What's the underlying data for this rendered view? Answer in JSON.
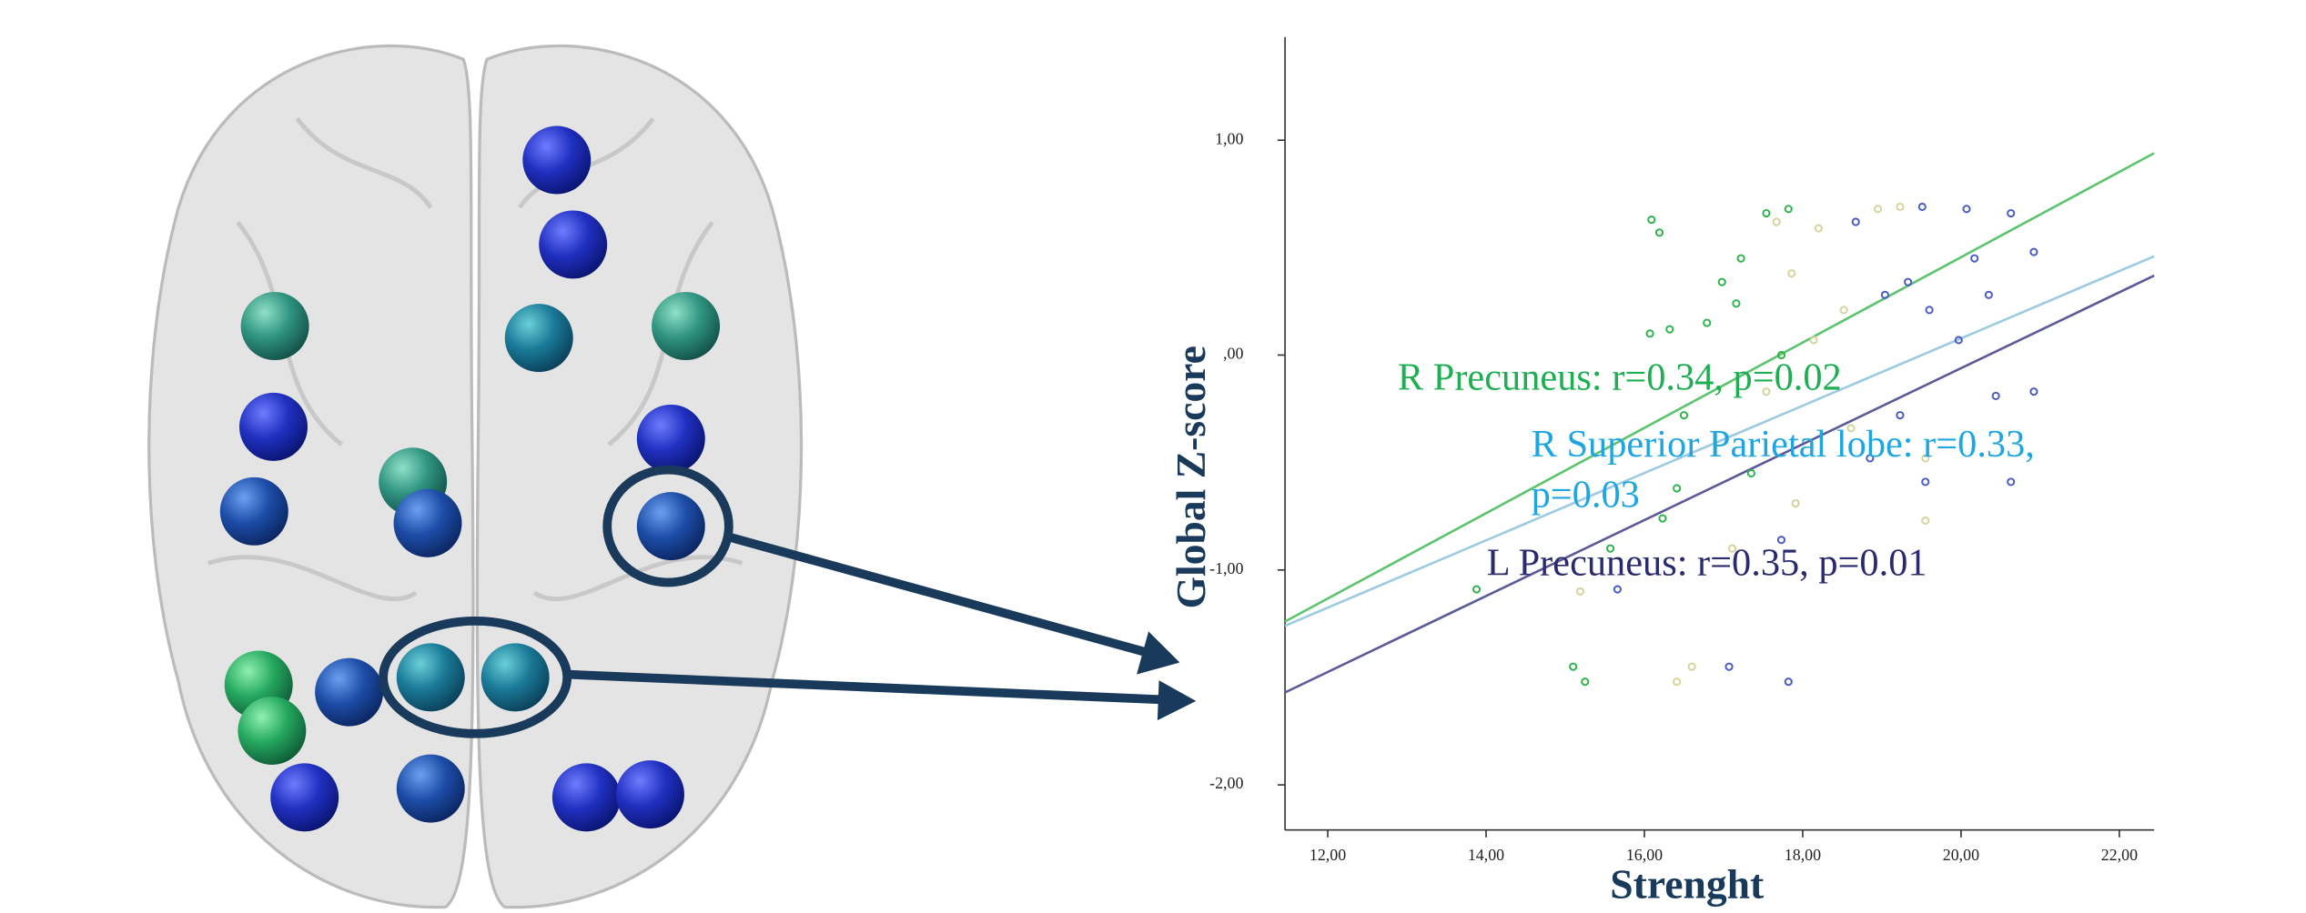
{
  "chart_data": {
    "type": "scatter",
    "xlabel": "Strenght",
    "ylabel": "Global Z-score",
    "xlim": [
      11.46,
      22.44
    ],
    "ylim": [
      -2.21,
      1.48
    ],
    "xticks": [
      {
        "value": 12,
        "label": "12,00"
      },
      {
        "value": 14,
        "label": "14,00"
      },
      {
        "value": 16,
        "label": "16,00"
      },
      {
        "value": 18,
        "label": "18,00"
      },
      {
        "value": 20,
        "label": "20,00"
      },
      {
        "value": 22,
        "label": "22,00"
      }
    ],
    "yticks": [
      {
        "value": 1,
        "label": "1,00"
      },
      {
        "value": 0,
        "label": ",00"
      },
      {
        "value": -1,
        "label": "-1,00"
      },
      {
        "value": -2,
        "label": "-2,00"
      }
    ],
    "series": [
      {
        "color": "#2db34a",
        "x": [
          16.09,
          16.19,
          17.22,
          17.54,
          17.82,
          16.98,
          16.07,
          16.32,
          16.79,
          17.16,
          16.5,
          16.41,
          16.23,
          15.57,
          13.88,
          15.1,
          15.25,
          17.35,
          17.73
        ],
        "values": [
          0.63,
          0.57,
          0.45,
          0.66,
          0.68,
          0.34,
          0.1,
          0.12,
          0.15,
          0.24,
          -0.28,
          -0.62,
          -0.76,
          -0.9,
          -1.09,
          -1.45,
          -1.52,
          -0.55,
          0.0
        ]
      },
      {
        "color": "#d6d39a",
        "x": [
          17.67,
          18.2,
          18.95,
          19.23,
          17.86,
          18.52,
          18.14,
          17.54,
          18.61,
          19.55,
          19.55,
          17.91,
          17.11,
          16.41,
          16.6,
          15.19
        ],
        "values": [
          0.62,
          0.59,
          0.68,
          0.69,
          0.38,
          0.21,
          0.07,
          -0.17,
          -0.34,
          -0.48,
          -0.77,
          -0.69,
          -0.9,
          -1.52,
          -1.45,
          -1.1
        ]
      },
      {
        "color": "#4a5bc0",
        "x": [
          19.51,
          20.07,
          20.63,
          18.67,
          20.92,
          20.17,
          19.33,
          19.04,
          20.35,
          19.6,
          19.97,
          20.44,
          20.92,
          19.23,
          18.85,
          20.63,
          19.55,
          17.73,
          17.07,
          17.82,
          15.66
        ],
        "values": [
          0.69,
          0.68,
          0.66,
          0.62,
          0.48,
          0.45,
          0.34,
          0.28,
          0.28,
          0.21,
          0.07,
          -0.19,
          -0.17,
          -0.28,
          -0.48,
          -0.59,
          -0.59,
          -0.86,
          -1.45,
          -1.52,
          -1.09
        ]
      }
    ],
    "fit_lines": [
      {
        "color": "#5cc46f",
        "x": [
          11.46,
          22.44
        ],
        "values": [
          -1.24,
          0.94
        ]
      },
      {
        "color": "#9ccbe0",
        "x": [
          11.46,
          22.44
        ],
        "values": [
          -1.26,
          0.46
        ]
      },
      {
        "color": "#5a5a98",
        "x": [
          11.46,
          22.44
        ],
        "values": [
          -1.57,
          0.37
        ]
      }
    ],
    "annotations": [
      {
        "color": "#1fae52",
        "lines": [
          "R Precuneus: r=0.34, p=0.02"
        ]
      },
      {
        "color": "#1fa6e0",
        "lines": [
          "R Superior Parietal lobe: r=0.33,",
          "p=0.03"
        ]
      },
      {
        "color": "#2a2a6e",
        "lines": [
          "L Precuneus: r=0.35, p=0.01"
        ]
      }
    ]
  }
}
